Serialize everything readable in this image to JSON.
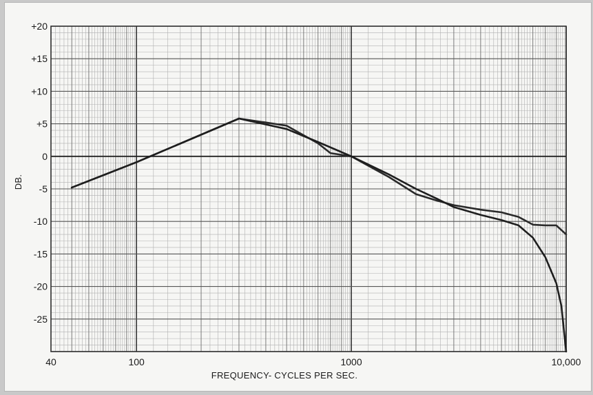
{
  "chart_data": {
    "type": "line",
    "xlabel": "FREQUENCY- CYCLES PER SEC.",
    "ylabel": "DB.",
    "x_scale": "log",
    "xlim": [
      40,
      10000
    ],
    "ylim": [
      -30,
      20
    ],
    "grid": true,
    "x_tick_labels": [
      {
        "value": 40,
        "label": "40"
      },
      {
        "value": 100,
        "label": "100"
      },
      {
        "value": 1000,
        "label": "1000"
      },
      {
        "value": 10000,
        "label": "10,000"
      }
    ],
    "y_tick_labels": [
      {
        "value": 20,
        "label": "+20"
      },
      {
        "value": 15,
        "label": "+15"
      },
      {
        "value": 10,
        "label": "+10"
      },
      {
        "value": 5,
        "label": "+5"
      },
      {
        "value": 0,
        "label": "0"
      },
      {
        "value": -5,
        "label": "-5"
      },
      {
        "value": -10,
        "label": "-10"
      },
      {
        "value": -15,
        "label": "-15"
      },
      {
        "value": -20,
        "label": "-20"
      },
      {
        "value": -25,
        "label": "-25"
      }
    ],
    "series": [
      {
        "color": "#2a2a2a",
        "x": [
          50,
          100,
          300,
          400,
          500,
          700,
          800,
          1000,
          1500,
          2000,
          2500,
          3000,
          4000,
          5000,
          6000,
          7000,
          8000,
          9000,
          10000
        ],
        "y": [
          -4.8,
          -0.9,
          5.8,
          5.2,
          4.7,
          2.0,
          0.5,
          0.0,
          -3.2,
          -5.8,
          -6.8,
          -7.5,
          -8.2,
          -8.6,
          -9.3,
          -10.5,
          -10.6,
          -10.6,
          -12.0
        ]
      },
      {
        "color": "#1e1e1e",
        "x": [
          50,
          100,
          300,
          500,
          700,
          1000,
          1500,
          2000,
          2500,
          3000,
          4000,
          5000,
          6000,
          7000,
          8000,
          9000,
          9500,
          10000
        ],
        "y": [
          -4.8,
          -0.9,
          5.8,
          4.2,
          2.2,
          0.0,
          -2.8,
          -5.0,
          -6.5,
          -7.8,
          -9.0,
          -9.8,
          -10.6,
          -12.5,
          -15.5,
          -19.5,
          -23.0,
          -30.0
        ]
      }
    ]
  }
}
